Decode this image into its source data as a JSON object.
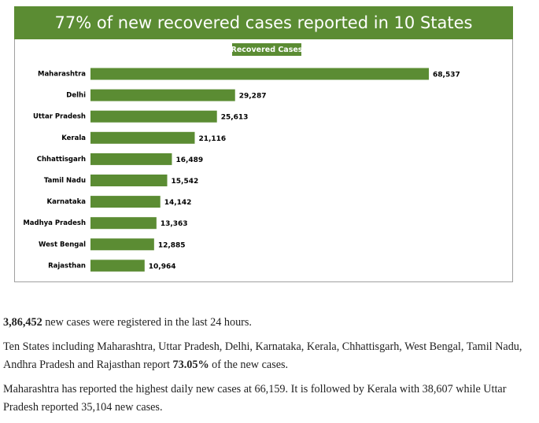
{
  "chart_data": {
    "type": "bar",
    "orientation": "horizontal",
    "title": "77% of new recovered cases reported in 10 States",
    "categories": [
      "Maharashtra",
      "Delhi",
      "Uttar Pradesh",
      "Kerala",
      "Chhattisgarh",
      "Tamil Nadu",
      "Karnataka",
      "Madhya Pradesh",
      "West Bengal",
      "Rajasthan"
    ],
    "series": [
      {
        "name": "Recovered Cases",
        "color": "#5b8c33",
        "values": [
          68537,
          29287,
          25613,
          21116,
          16489,
          15542,
          14142,
          13363,
          12885,
          10964
        ],
        "value_labels": [
          "68,537",
          "29,287",
          "25,613",
          "21,116",
          "16,489",
          "15,542",
          "14,142",
          "13,363",
          "12,885",
          "10,964"
        ]
      }
    ],
    "legend": "top",
    "grid": false
  },
  "article": {
    "paragraphs": [
      {
        "runs": [
          {
            "text": "3,86,452",
            "bold": true
          },
          {
            "text": " new cases were registered in the last 24 hours.",
            "bold": false
          }
        ]
      },
      {
        "runs": [
          {
            "text": "Ten States including Maharashtra, Uttar Pradesh, Delhi, Karnataka, Kerala, Chhattisgarh, West Bengal, Tamil Nadu, Andhra Pradesh and Rajasthan report ",
            "bold": false
          },
          {
            "text": "73.05%",
            "bold": true
          },
          {
            "text": " of the new cases.",
            "bold": false
          }
        ]
      },
      {
        "runs": [
          {
            "text": "Maharashtra has reported the highest daily new cases at 66,159. It is followed by Kerala with 38,607 while Uttar Pradesh reported 35,104 new cases.",
            "bold": false
          }
        ]
      }
    ]
  }
}
